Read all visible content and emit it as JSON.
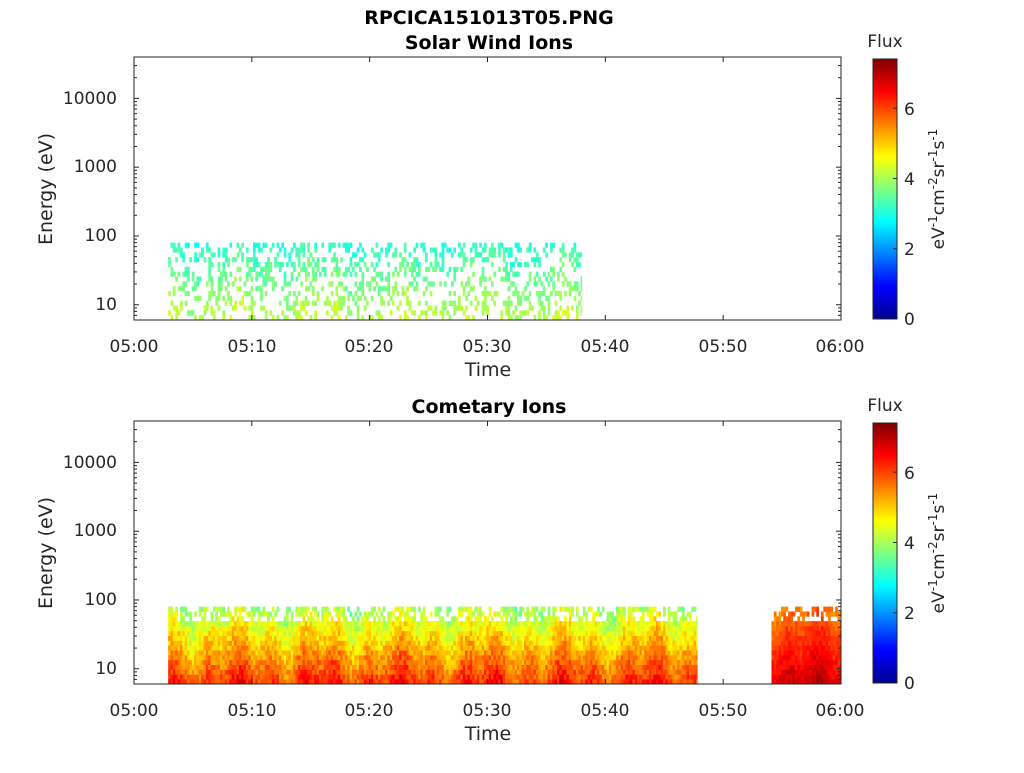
{
  "figure": {
    "main_title": "RPCICA151013T05.PNG"
  },
  "colormap": "jet",
  "chart_data": [
    {
      "type": "heatmap",
      "title": "Solar Wind Ions",
      "xlabel": "Time",
      "ylabel": "Energy (eV)",
      "x_ticks": [
        "05:00",
        "05:10",
        "05:20",
        "05:30",
        "05:40",
        "05:50",
        "06:00"
      ],
      "x_range_minutes": [
        0,
        60
      ],
      "y_scale": "log",
      "y_ticks": [
        "10",
        "100",
        "1000",
        "10000"
      ],
      "y_range": [
        6,
        40000
      ],
      "colorbar": {
        "title": "Flux",
        "label": "eV-1cm-2sr-1s-1",
        "ticks": [
          "0",
          "2",
          "4",
          "6"
        ],
        "range": [
          0,
          7.4
        ]
      },
      "activity": [
        {
          "start_min": 2.9,
          "end_min": 38.0,
          "e_min": 6,
          "e_max": 80,
          "flux_min": 2.6,
          "flux_max": 4.6
        }
      ]
    },
    {
      "type": "heatmap",
      "title": "Cometary Ions",
      "xlabel": "Time",
      "ylabel": "Energy (eV)",
      "x_ticks": [
        "05:00",
        "05:10",
        "05:20",
        "05:30",
        "05:40",
        "05:50",
        "06:00"
      ],
      "x_range_minutes": [
        0,
        60
      ],
      "y_scale": "log",
      "y_ticks": [
        "10",
        "100",
        "1000",
        "10000"
      ],
      "y_range": [
        6,
        40000
      ],
      "colorbar": {
        "title": "Flux",
        "label": "eV-1cm-2sr-1s-1",
        "ticks": [
          "0",
          "2",
          "4",
          "6"
        ],
        "range": [
          0,
          7.4
        ]
      },
      "activity": [
        {
          "start_min": 2.9,
          "end_min": 47.8,
          "e_min": 6,
          "e_max": 80,
          "flux_min": 3.0,
          "flux_max": 7.0
        },
        {
          "start_min": 54.1,
          "end_min": 60.0,
          "e_min": 6,
          "e_max": 80,
          "flux_min": 5.0,
          "flux_max": 7.3
        }
      ]
    }
  ]
}
